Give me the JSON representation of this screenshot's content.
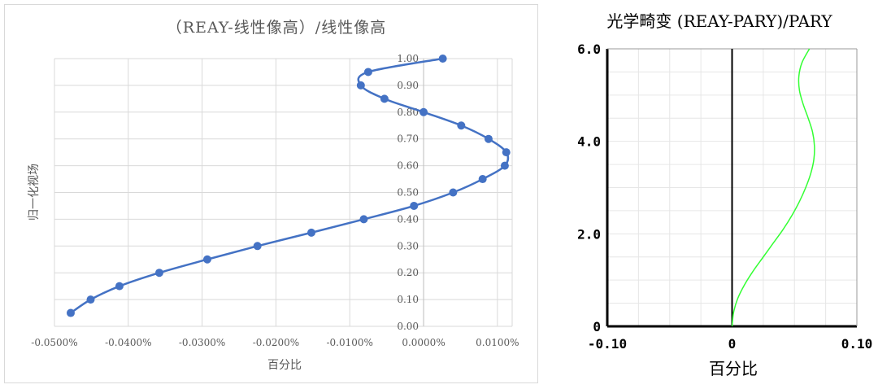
{
  "chart_data": [
    {
      "type": "scatter",
      "title": "（REAY-线性像高）/线性像高",
      "xlabel": "百分比",
      "ylabel": "归一化视场",
      "xlim": [
        -0.05,
        0.012
      ],
      "ylim": [
        0,
        1.0
      ],
      "x_ticks": [
        "-0.0500%",
        "-0.0400%",
        "-0.0300%",
        "-0.0200%",
        "-0.0100%",
        "0.0000%",
        "0.0100%"
      ],
      "x_tick_values": [
        -0.05,
        -0.04,
        -0.03,
        -0.02,
        -0.01,
        0.0,
        0.01
      ],
      "y_ticks": [
        "0.00",
        "0.10",
        "0.20",
        "0.30",
        "0.40",
        "0.50",
        "0.60",
        "0.70",
        "0.80",
        "0.90",
        "1.00"
      ],
      "grid": true,
      "color": "#4472c4",
      "series": [
        {
          "x": [
            -0.0478,
            -0.0451,
            -0.0412,
            -0.0358,
            -0.0293,
            -0.0225,
            -0.0152,
            -0.0081,
            -0.0013,
            0.004,
            0.008,
            0.011,
            0.0112,
            0.0088,
            0.0051,
            0.0,
            -0.0053,
            -0.0085,
            -0.0075,
            0.0026
          ],
          "y": [
            0.05,
            0.1,
            0.15,
            0.2,
            0.25,
            0.3,
            0.35,
            0.4,
            0.45,
            0.5,
            0.55,
            0.6,
            0.65,
            0.7,
            0.75,
            0.8,
            0.85,
            0.9,
            0.95,
            1.0
          ]
        }
      ]
    },
    {
      "type": "line",
      "title": "光学畸变 (REAY-PARY)/PARY",
      "xlabel": "百分比",
      "ylabel": "",
      "xlim": [
        -0.1,
        0.1
      ],
      "ylim": [
        0,
        6.0
      ],
      "x_ticks": [
        "-0.10",
        "0",
        "0.10"
      ],
      "x_tick_values": [
        -0.1,
        0,
        0.1
      ],
      "y_ticks": [
        "0",
        "2.0",
        "4.0",
        "6.0"
      ],
      "y_tick_values": [
        0,
        2.0,
        4.0,
        6.0
      ],
      "grid": true,
      "color": "#33ff33",
      "series": [
        {
          "x": [
            0,
            0.0012,
            0.0045,
            0.01,
            0.017,
            0.025,
            0.033,
            0.041,
            0.048,
            0.054,
            0.059,
            0.063,
            0.0655,
            0.066,
            0.0645,
            0.061,
            0.057,
            0.054,
            0.0535,
            0.056,
            0.062
          ],
          "y": [
            0,
            0.3,
            0.6,
            0.9,
            1.2,
            1.5,
            1.8,
            2.1,
            2.4,
            2.7,
            3.0,
            3.3,
            3.6,
            3.9,
            4.2,
            4.5,
            4.8,
            5.1,
            5.4,
            5.7,
            6.0
          ]
        }
      ]
    }
  ]
}
